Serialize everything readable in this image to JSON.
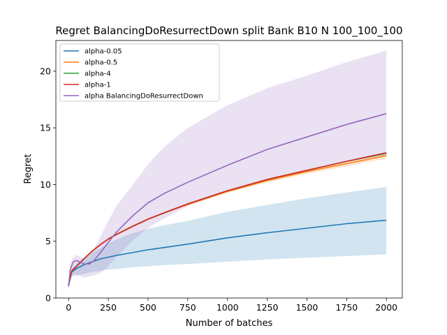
{
  "chart_data": {
    "type": "line",
    "title": "Regret BalancingDoResurrectDown split Bank B10 N 100_100_100",
    "xlabel": "Number of batches",
    "ylabel": "Regret",
    "xlim": [
      -80,
      2100
    ],
    "ylim": [
      0,
      22.7
    ],
    "xticks": [
      0,
      250,
      500,
      750,
      1000,
      1250,
      1500,
      1750,
      2000
    ],
    "yticks": [
      0,
      5,
      10,
      15,
      20
    ],
    "grid": false,
    "legend_position": "top-left",
    "series": [
      {
        "name": "alpha-0.05",
        "color": "#1f77b4",
        "x": [
          0,
          20,
          50,
          100,
          150,
          200,
          250,
          300,
          400,
          500,
          600,
          750,
          1000,
          1250,
          1500,
          1750,
          2000
        ],
        "y": [
          1.1,
          2.3,
          2.6,
          2.95,
          3.2,
          3.45,
          3.6,
          3.75,
          4.0,
          4.25,
          4.45,
          4.75,
          5.3,
          5.75,
          6.15,
          6.55,
          6.85
        ],
        "band_low": [
          1.0,
          1.9,
          2.0,
          2.15,
          2.3,
          2.4,
          2.5,
          2.55,
          2.7,
          2.8,
          2.9,
          3.0,
          3.2,
          3.4,
          3.55,
          3.7,
          3.85
        ],
        "band_high": [
          1.2,
          2.6,
          3.0,
          3.6,
          4.0,
          4.4,
          4.8,
          5.15,
          5.7,
          6.1,
          6.4,
          6.8,
          7.6,
          8.2,
          8.8,
          9.3,
          9.8
        ]
      },
      {
        "name": "alpha-0.5",
        "color": "#ff7f0e",
        "x": [
          0,
          20,
          50,
          100,
          150,
          200,
          250,
          300,
          400,
          500,
          600,
          750,
          1000,
          1250,
          1500,
          1750,
          2000
        ],
        "y": [
          1.2,
          2.4,
          2.8,
          3.5,
          4.15,
          4.7,
          5.2,
          5.6,
          6.3,
          6.95,
          7.5,
          8.25,
          9.4,
          10.35,
          11.15,
          11.85,
          12.55
        ],
        "band_low": [
          1.1,
          2.3,
          2.7,
          3.4,
          4.05,
          4.6,
          5.1,
          5.5,
          6.2,
          6.85,
          7.4,
          8.15,
          9.25,
          10.2,
          10.95,
          11.6,
          12.3
        ],
        "band_high": [
          1.3,
          2.5,
          2.9,
          3.6,
          4.25,
          4.8,
          5.3,
          5.7,
          6.4,
          7.05,
          7.6,
          8.35,
          9.55,
          10.5,
          11.35,
          12.05,
          12.75
        ]
      },
      {
        "name": "alpha-4",
        "color": "#2ca02c",
        "x": [
          0,
          20,
          50,
          100,
          150,
          200,
          250,
          300,
          400,
          500,
          600,
          750,
          1000,
          1250,
          1500,
          1750,
          2000
        ],
        "y": [
          1.2,
          2.4,
          2.8,
          3.5,
          4.15,
          4.7,
          5.2,
          5.6,
          6.3,
          6.95,
          7.5,
          8.3,
          9.45,
          10.45,
          11.25,
          12.05,
          12.75
        ],
        "band_low": [
          1.1,
          2.35,
          2.75,
          3.45,
          4.1,
          4.65,
          5.15,
          5.55,
          6.25,
          6.9,
          7.45,
          8.25,
          9.4,
          10.4,
          11.2,
          12.0,
          12.7
        ],
        "band_high": [
          1.3,
          2.45,
          2.85,
          3.55,
          4.2,
          4.75,
          5.25,
          5.65,
          6.35,
          7.0,
          7.55,
          8.35,
          9.5,
          10.5,
          11.3,
          12.1,
          12.8
        ]
      },
      {
        "name": "alpha-1",
        "color": "#d62728",
        "x": [
          0,
          20,
          50,
          100,
          150,
          200,
          250,
          300,
          400,
          500,
          600,
          750,
          1000,
          1250,
          1500,
          1750,
          2000
        ],
        "y": [
          1.2,
          2.4,
          2.8,
          3.5,
          4.15,
          4.7,
          5.2,
          5.6,
          6.3,
          6.95,
          7.5,
          8.3,
          9.45,
          10.45,
          11.25,
          12.05,
          12.8
        ],
        "band_low": [
          1.1,
          2.35,
          2.75,
          3.45,
          4.1,
          4.65,
          5.15,
          5.55,
          6.25,
          6.9,
          7.45,
          8.25,
          9.4,
          10.4,
          11.2,
          12.0,
          12.75
        ],
        "band_high": [
          1.3,
          2.45,
          2.85,
          3.55,
          4.2,
          4.75,
          5.25,
          5.65,
          6.35,
          7.0,
          7.55,
          8.35,
          9.5,
          10.5,
          11.3,
          12.1,
          12.85
        ]
      },
      {
        "name": "alpha BalancingDoResurrectDown",
        "color": "#9467bd",
        "x": [
          0,
          10,
          30,
          50,
          80,
          100,
          130,
          160,
          200,
          250,
          300,
          400,
          500,
          600,
          750,
          1000,
          1250,
          1500,
          1750,
          2000
        ],
        "y": [
          1.0,
          2.5,
          3.2,
          3.3,
          3.1,
          3.0,
          3.0,
          3.3,
          4.0,
          4.9,
          5.8,
          7.2,
          8.4,
          9.2,
          10.2,
          11.7,
          13.1,
          14.2,
          15.3,
          16.25
        ],
        "band_low": [
          0.9,
          1.9,
          2.1,
          2.0,
          1.9,
          1.8,
          1.9,
          2.0,
          2.2,
          2.8,
          3.6,
          5.0,
          6.2,
          7.0,
          8.1,
          9.4,
          10.4,
          11.2,
          12.0,
          12.6
        ],
        "band_high": [
          1.1,
          3.0,
          3.6,
          3.8,
          3.6,
          3.5,
          3.7,
          4.3,
          5.4,
          6.8,
          8.1,
          9.9,
          11.8,
          13.3,
          15.0,
          17.0,
          18.5,
          19.6,
          20.8,
          21.8
        ]
      }
    ]
  }
}
